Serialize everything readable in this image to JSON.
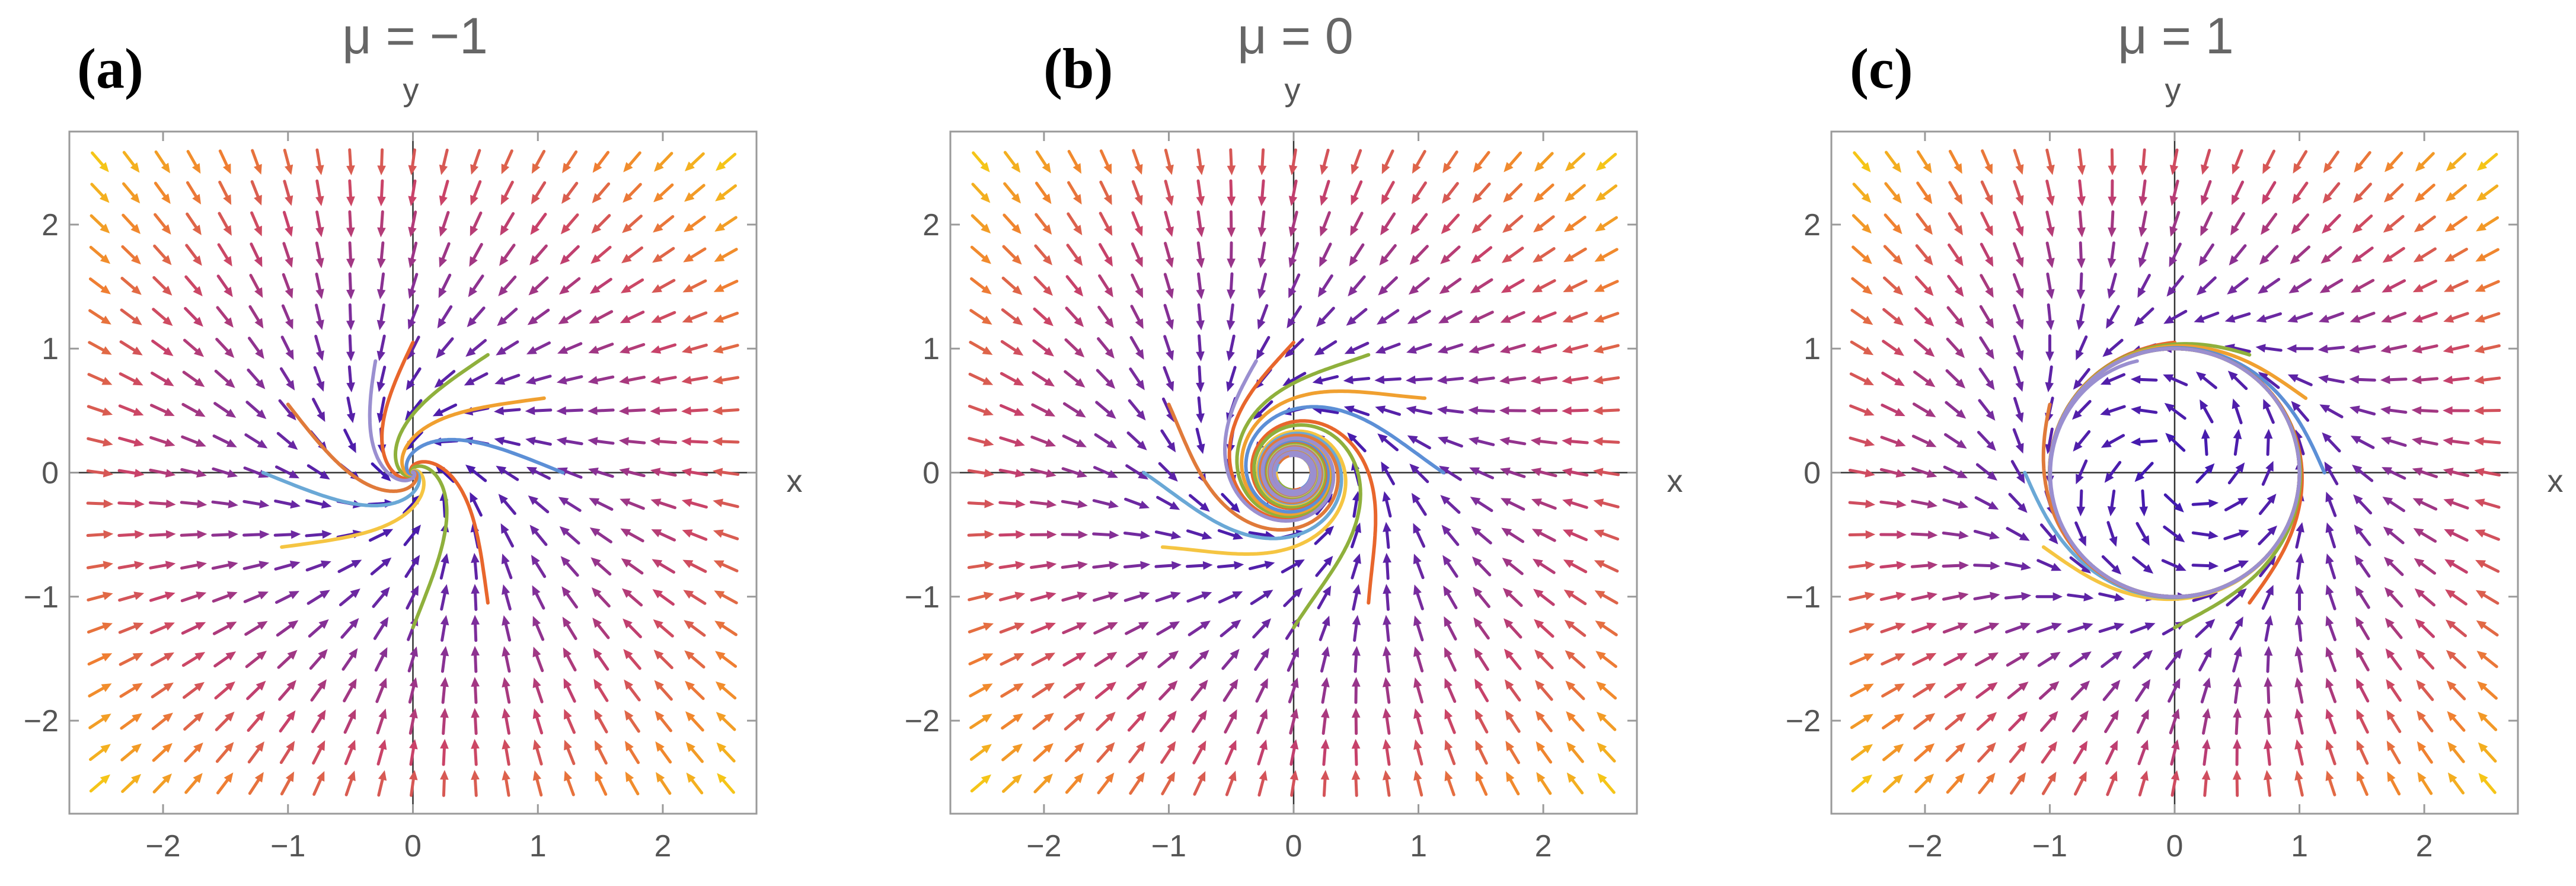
{
  "chart_data": [
    {
      "type": "vector-field",
      "panel_label": "(a)",
      "title": "μ = −1",
      "xlabel": "x",
      "ylabel": "y",
      "mu": -1,
      "xlim": [
        -2.75,
        2.75
      ],
      "ylim": [
        -2.75,
        2.75
      ],
      "xticks": [
        {
          "value": -2,
          "label": "−2"
        },
        {
          "value": -1,
          "label": "−1"
        },
        {
          "value": 0,
          "label": "0"
        },
        {
          "value": 1,
          "label": "1"
        },
        {
          "value": 2,
          "label": "2"
        }
      ],
      "yticks": [
        {
          "value": -2,
          "label": "−2"
        },
        {
          "value": -1,
          "label": "−1"
        },
        {
          "value": 0,
          "label": "0"
        },
        {
          "value": 1,
          "label": "1"
        },
        {
          "value": 2,
          "label": "2"
        }
      ],
      "field": {
        "dx": "mu*x - y - x*(x^2+y^2)",
        "dy": "x + mu*y - y*(x^2+y^2)",
        "grid_step": 0.25,
        "colormap": [
          "#2a12b8",
          "#7b2d9c",
          "#c8416a",
          "#f08030",
          "#f5c518"
        ]
      },
      "trajectories": [
        {
          "color": "#e8662c",
          "start": [
            0,
            1.05
          ]
        },
        {
          "color": "#8fb03c",
          "start": [
            0.6,
            0.95
          ]
        },
        {
          "color": "#f0a030",
          "start": [
            1.05,
            0.6
          ]
        },
        {
          "color": "#5c8fd6",
          "start": [
            1.2,
            0
          ]
        },
        {
          "color": "#e8662c",
          "start": [
            0.6,
            -1.05
          ]
        },
        {
          "color": "#8fb03c",
          "start": [
            0,
            -1.25
          ]
        },
        {
          "color": "#f5c542",
          "start": [
            -1.05,
            -0.6
          ]
        },
        {
          "color": "#6aa8d6",
          "start": [
            -1.2,
            0
          ]
        },
        {
          "color": "#e07a3a",
          "start": [
            -1.0,
            0.55
          ]
        },
        {
          "color": "#9a8fd0",
          "start": [
            -0.3,
            0.9
          ]
        }
      ]
    },
    {
      "type": "vector-field",
      "panel_label": "(b)",
      "title": "μ = 0",
      "xlabel": "x",
      "ylabel": "y",
      "mu": 0,
      "xlim": [
        -2.75,
        2.75
      ],
      "ylim": [
        -2.75,
        2.75
      ],
      "xticks": [
        {
          "value": -2,
          "label": "−2"
        },
        {
          "value": -1,
          "label": "−1"
        },
        {
          "value": 0,
          "label": "0"
        },
        {
          "value": 1,
          "label": "1"
        },
        {
          "value": 2,
          "label": "2"
        }
      ],
      "yticks": [
        {
          "value": -2,
          "label": "−2"
        },
        {
          "value": -1,
          "label": "−1"
        },
        {
          "value": 0,
          "label": "0"
        },
        {
          "value": 1,
          "label": "1"
        },
        {
          "value": 2,
          "label": "2"
        }
      ],
      "field": {
        "dx": "mu*x - y - x*(x^2+y^2)",
        "dy": "x + mu*y - y*(x^2+y^2)",
        "grid_step": 0.25,
        "colormap": [
          "#2a12b8",
          "#7b2d9c",
          "#c8416a",
          "#f08030",
          "#f5c518"
        ]
      },
      "trajectories": [
        {
          "color": "#e8662c",
          "start": [
            0,
            1.05
          ]
        },
        {
          "color": "#8fb03c",
          "start": [
            0.6,
            0.95
          ]
        },
        {
          "color": "#f0a030",
          "start": [
            1.05,
            0.6
          ]
        },
        {
          "color": "#5c8fd6",
          "start": [
            1.2,
            0
          ]
        },
        {
          "color": "#e8662c",
          "start": [
            0.6,
            -1.05
          ]
        },
        {
          "color": "#8fb03c",
          "start": [
            0,
            -1.25
          ]
        },
        {
          "color": "#f5c542",
          "start": [
            -1.05,
            -0.6
          ]
        },
        {
          "color": "#6aa8d6",
          "start": [
            -1.2,
            0
          ]
        },
        {
          "color": "#e07a3a",
          "start": [
            -1.0,
            0.55
          ]
        },
        {
          "color": "#9a8fd0",
          "start": [
            -0.3,
            0.9
          ]
        }
      ]
    },
    {
      "type": "vector-field",
      "panel_label": "(c)",
      "title": "μ = 1",
      "xlabel": "x",
      "ylabel": "y",
      "mu": 1,
      "xlim": [
        -2.75,
        2.75
      ],
      "ylim": [
        -2.75,
        2.75
      ],
      "xticks": [
        {
          "value": -2,
          "label": "−2"
        },
        {
          "value": -1,
          "label": "−1"
        },
        {
          "value": 0,
          "label": "0"
        },
        {
          "value": 1,
          "label": "1"
        },
        {
          "value": 2,
          "label": "2"
        }
      ],
      "yticks": [
        {
          "value": -2,
          "label": "−2"
        },
        {
          "value": -1,
          "label": "−1"
        },
        {
          "value": 0,
          "label": "0"
        },
        {
          "value": 1,
          "label": "1"
        },
        {
          "value": 2,
          "label": "2"
        }
      ],
      "field": {
        "dx": "mu*x - y - x*(x^2+y^2)",
        "dy": "x + mu*y - y*(x^2+y^2)",
        "grid_step": 0.25,
        "colormap": [
          "#2a12b8",
          "#7b2d9c",
          "#c8416a",
          "#f08030",
          "#f5c518"
        ]
      },
      "trajectories": [
        {
          "color": "#e8662c",
          "start": [
            0,
            1.05
          ]
        },
        {
          "color": "#8fb03c",
          "start": [
            0.6,
            0.95
          ]
        },
        {
          "color": "#f0a030",
          "start": [
            1.05,
            0.6
          ]
        },
        {
          "color": "#5c8fd6",
          "start": [
            1.2,
            0
          ]
        },
        {
          "color": "#e8662c",
          "start": [
            0.6,
            -1.05
          ]
        },
        {
          "color": "#8fb03c",
          "start": [
            0,
            -1.25
          ]
        },
        {
          "color": "#f5c542",
          "start": [
            -1.05,
            -0.6
          ]
        },
        {
          "color": "#6aa8d6",
          "start": [
            -1.2,
            0
          ]
        },
        {
          "color": "#e07a3a",
          "start": [
            -1.0,
            0.55
          ]
        },
        {
          "color": "#9a8fd0",
          "start": [
            -0.3,
            0.9
          ]
        }
      ]
    }
  ]
}
